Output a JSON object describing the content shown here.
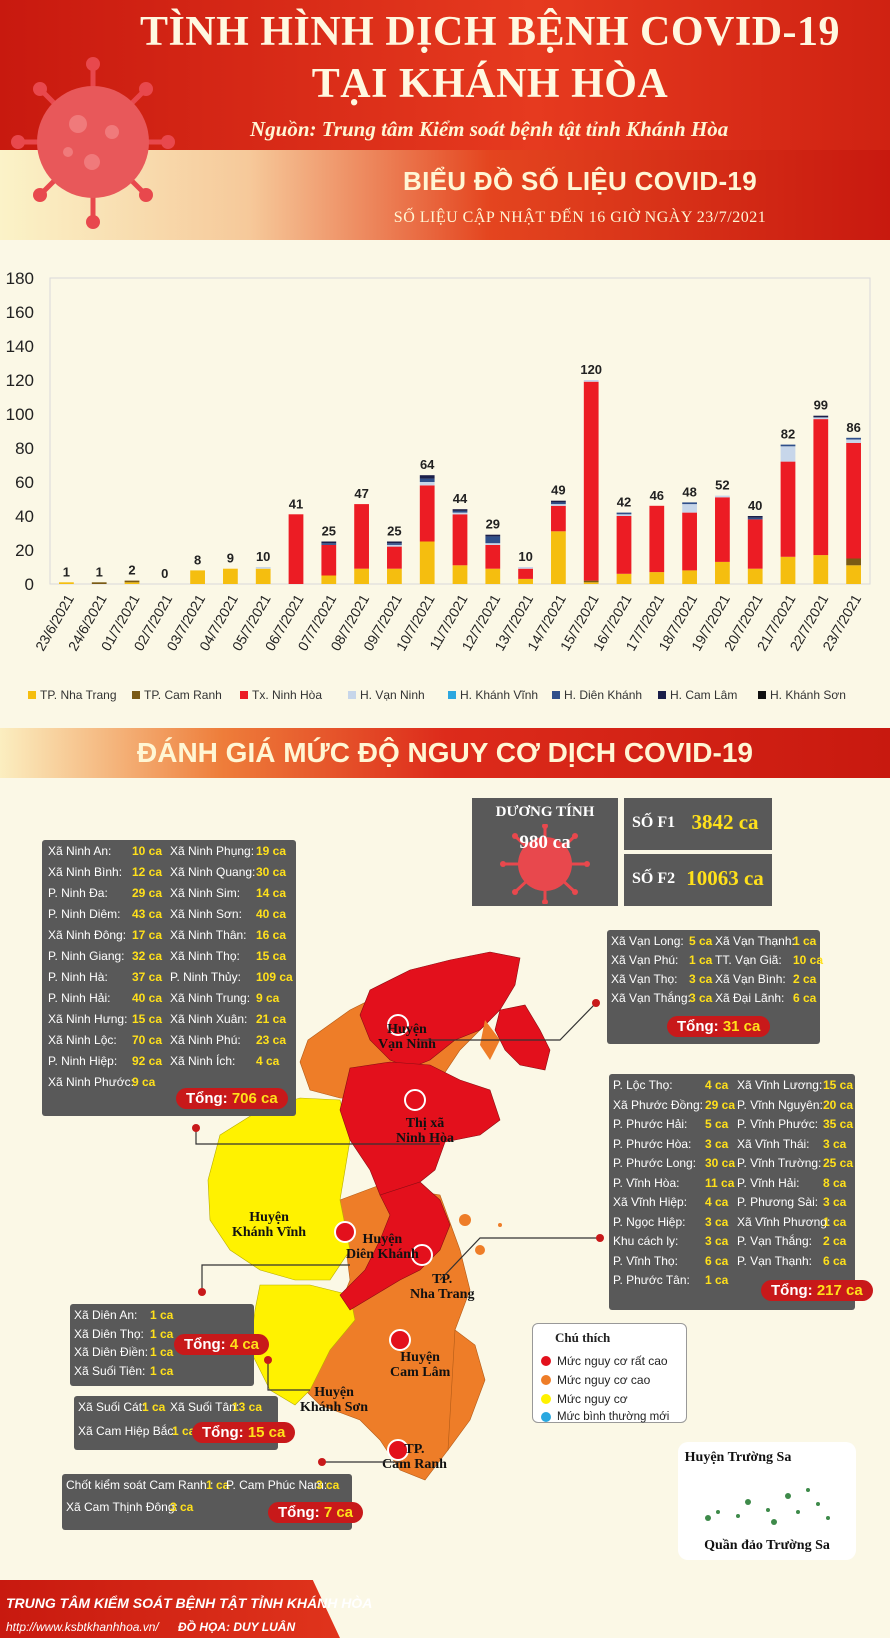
{
  "header": {
    "title_line1": "TÌNH HÌNH DỊCH BỆNH COVID-19",
    "title_line2": "TẠI KHÁNH HÒA",
    "source": "Nguồn: Trung tâm Kiểm soát bệnh tật tỉnh Khánh Hòa",
    "chart_title": "BIỂU ĐỒ SỐ LIỆU COVID-19",
    "chart_subtitle": "SỐ LIỆU CẬP NHẬT ĐẾN 16 GIỜ NGÀY 23/7/2021"
  },
  "colors": {
    "TP. Nha Trang": "#f5be0f",
    "TP. Cam Ranh": "#7a5a14",
    "Tx. Ninh Hòa": "#ec1c24",
    "H. Vạn Ninh": "#c7d6ea",
    "H. Khánh Vĩnh": "#2ca7df",
    "H. Diên Khánh": "#2f4f8a",
    "H. Cam Lâm": "#1b1f4a",
    "H. Khánh Sơn": "#111111"
  },
  "chart_data": {
    "type": "bar",
    "stacked": true,
    "title": "BIỂU ĐỒ SỐ LIỆU COVID-19",
    "ylim": [
      0,
      180
    ],
    "yticks": [
      0,
      20,
      40,
      60,
      80,
      100,
      120,
      140,
      160,
      180
    ],
    "grid": false,
    "legend_position": "bottom",
    "categories": [
      "23/6/2021",
      "24/6/2021",
      "01/7/2021",
      "02/7/2021",
      "03/7/2021",
      "04/7/2021",
      "05/7/2021",
      "06/7/2021",
      "07/7/2021",
      "08/7/2021",
      "09/7/2021",
      "10/7/2021",
      "11/7/2021",
      "12/7/2021",
      "13/7/2021",
      "14/7/2021",
      "15/7/2021",
      "16/7/2021",
      "17/7/2021",
      "18/7/2021",
      "19/7/2021",
      "20/7/2021",
      "21/7/2021",
      "22/7/2021",
      "23/7/2021"
    ],
    "totals": [
      1,
      1,
      2,
      0,
      8,
      9,
      10,
      41,
      25,
      47,
      25,
      64,
      44,
      29,
      10,
      49,
      120,
      42,
      46,
      48,
      52,
      40,
      82,
      99,
      86
    ],
    "series": [
      {
        "name": "TP. Nha Trang",
        "values": [
          1,
          0,
          1,
          0,
          8,
          9,
          9,
          0,
          5,
          9,
          9,
          25,
          11,
          9,
          3,
          31,
          1,
          6,
          7,
          8,
          13,
          9,
          16,
          17,
          11
        ]
      },
      {
        "name": "TP. Cam Ranh",
        "values": [
          0,
          1,
          1,
          0,
          0,
          0,
          0,
          0,
          0,
          0,
          0,
          0,
          0,
          0,
          0,
          0,
          1,
          0,
          0,
          0,
          0,
          0,
          0,
          0,
          4
        ]
      },
      {
        "name": "Tx. Ninh Hòa",
        "values": [
          0,
          0,
          0,
          0,
          0,
          0,
          0,
          41,
          18,
          38,
          13,
          33,
          30,
          14,
          6,
          15,
          117,
          34,
          39,
          34,
          38,
          29,
          56,
          80,
          68
        ]
      },
      {
        "name": "H. Vạn Ninh",
        "values": [
          0,
          0,
          0,
          0,
          0,
          0,
          1,
          0,
          0,
          0,
          1,
          2,
          1,
          1,
          1,
          1,
          1,
          1,
          0,
          5,
          1,
          0,
          9,
          1,
          2
        ]
      },
      {
        "name": "H. Khánh Vĩnh",
        "values": [
          0,
          0,
          0,
          0,
          0,
          0,
          0,
          0,
          0,
          0,
          0,
          0,
          0,
          0,
          0,
          0,
          0,
          0,
          0,
          0,
          0,
          0,
          0,
          0,
          0
        ]
      },
      {
        "name": "H. Diên Khánh",
        "values": [
          0,
          0,
          0,
          0,
          0,
          0,
          0,
          0,
          1,
          0,
          1,
          2,
          1,
          4,
          0,
          1,
          0,
          1,
          0,
          1,
          0,
          1,
          1,
          0,
          1
        ]
      },
      {
        "name": "H. Cam Lâm",
        "values": [
          0,
          0,
          0,
          0,
          0,
          0,
          0,
          0,
          1,
          0,
          1,
          2,
          1,
          1,
          0,
          1,
          0,
          0,
          0,
          0,
          0,
          1,
          0,
          1,
          0
        ]
      },
      {
        "name": "H. Khánh Sơn",
        "values": [
          0,
          0,
          0,
          0,
          0,
          0,
          0,
          0,
          0,
          0,
          0,
          0,
          0,
          0,
          0,
          0,
          0,
          0,
          0,
          0,
          0,
          0,
          0,
          0,
          0
        ]
      }
    ]
  },
  "risk_title": "ĐÁNH GIÁ MỨC ĐỘ NGUY CƠ DỊCH COVID-19",
  "stats": {
    "positive_label": "DƯƠNG TÍNH",
    "positive_value": "980 ca",
    "f1_label": "SỐ F1",
    "f1_value": "3842 ca",
    "f2_label": "SỐ F2",
    "f2_value": "10063 ca"
  },
  "ninh_hoa_box": {
    "col1": [
      {
        "name": "Xã Ninh An:",
        "value": "10 ca"
      },
      {
        "name": "Xã Ninh Bình:",
        "value": "12 ca"
      },
      {
        "name": "P. Ninh Đa:",
        "value": "29 ca"
      },
      {
        "name": "P. Ninh Diêm:",
        "value": "43 ca"
      },
      {
        "name": "Xã Ninh Đông:",
        "value": "17 ca"
      },
      {
        "name": "P. Ninh Giang:",
        "value": "32 ca"
      },
      {
        "name": "P. Ninh Hà:",
        "value": "37 ca"
      },
      {
        "name": "P. Ninh Hải:",
        "value": "40 ca"
      },
      {
        "name": "Xã Ninh Hưng:",
        "value": "15 ca"
      },
      {
        "name": "Xã Ninh Lộc:",
        "value": "70 ca"
      },
      {
        "name": "P. Ninh Hiệp:",
        "value": "92 ca"
      },
      {
        "name": "Xã Ninh Phước:",
        "value": "9 ca"
      }
    ],
    "col2": [
      {
        "name": "Xã Ninh Phụng:",
        "value": "19 ca"
      },
      {
        "name": "Xã Ninh Quang:",
        "value": "30 ca"
      },
      {
        "name": "Xã Ninh Sim:",
        "value": "14 ca"
      },
      {
        "name": "Xã Ninh Sơn:",
        "value": "40 ca"
      },
      {
        "name": "Xã Ninh Thân:",
        "value": "16 ca"
      },
      {
        "name": "Xã Ninh Thọ:",
        "value": "15 ca"
      },
      {
        "name": "P. Ninh Thủy:",
        "value": "109 ca"
      },
      {
        "name": "Xã Ninh Trung:",
        "value": "9 ca"
      },
      {
        "name": "Xã Ninh Xuân:",
        "value": "21 ca"
      },
      {
        "name": "Xã Ninh Phú:",
        "value": "23 ca"
      },
      {
        "name": "Xã Ninh Ích:",
        "value": "4 ca"
      }
    ],
    "total_label": "Tổng:",
    "total_value": "706 ca"
  },
  "van_ninh_box": {
    "col1": [
      {
        "name": "Xã Vạn Long:",
        "value": "5 ca"
      },
      {
        "name": "Xã Vạn Phú:",
        "value": "1 ca"
      },
      {
        "name": "Xã Vạn Thọ:",
        "value": "3 ca"
      },
      {
        "name": "Xã Vạn Thắng:",
        "value": "3 ca"
      }
    ],
    "col2": [
      {
        "name": "Xã Vạn Thạnh:",
        "value": "1 ca"
      },
      {
        "name": "TT. Vạn Giã:",
        "value": "10 ca"
      },
      {
        "name": "Xã Vạn Bình:",
        "value": "2 ca"
      },
      {
        "name": "Xã Đại Lãnh:",
        "value": "6 ca"
      }
    ],
    "total_label": "Tổng:",
    "total_value": "31 ca"
  },
  "nha_trang_box": {
    "col1": [
      {
        "name": "P. Lộc Thọ:",
        "value": "4 ca"
      },
      {
        "name": "Xã Phước Đồng:",
        "value": "29 ca"
      },
      {
        "name": "P. Phước Hải:",
        "value": "5 ca"
      },
      {
        "name": "P. Phước Hòa:",
        "value": "3 ca"
      },
      {
        "name": "P. Phước Long:",
        "value": "30 ca"
      },
      {
        "name": "P. Vĩnh Hòa:",
        "value": "11 ca"
      },
      {
        "name": "Xã Vĩnh Hiệp:",
        "value": "4 ca"
      },
      {
        "name": "P. Ngọc Hiệp:",
        "value": "3 ca"
      },
      {
        "name": "Khu cách ly:",
        "value": "3 ca"
      },
      {
        "name": "P. Vĩnh Thọ:",
        "value": "6 ca"
      },
      {
        "name": "P. Phước Tân:",
        "value": "1 ca"
      }
    ],
    "col2": [
      {
        "name": "Xã Vĩnh Lương:",
        "value": "15 ca"
      },
      {
        "name": "P. Vĩnh Nguyên:",
        "value": "20 ca"
      },
      {
        "name": "P. Vĩnh Phước:",
        "value": "35 ca"
      },
      {
        "name": "Xã Vĩnh Thái:",
        "value": "3 ca"
      },
      {
        "name": "P. Vĩnh Trường:",
        "value": "25 ca"
      },
      {
        "name": "P. Vĩnh Hải:",
        "value": "8 ca"
      },
      {
        "name": "P. Phương Sài:",
        "value": "3 ca"
      },
      {
        "name": "Xã Vĩnh Phương:",
        "value": "1 ca"
      },
      {
        "name": "P. Vạn Thắng:",
        "value": "2 ca"
      },
      {
        "name": "P. Vạn Thạnh:",
        "value": "6 ca"
      }
    ],
    "total_label": "Tổng:",
    "total_value": "217 ca"
  },
  "dien_khanh_box": {
    "rows": [
      {
        "name": "Xã Diên An:",
        "value": "1 ca"
      },
      {
        "name": "Xã Diên Thọ:",
        "value": "1 ca"
      },
      {
        "name": "Xã Diên Điền:",
        "value": "1 ca"
      },
      {
        "name": "Xã Suối Tiên:",
        "value": "1 ca"
      }
    ],
    "total_label": "Tổng:",
    "total_value": "4 ca"
  },
  "cam_lam_box": {
    "rows": [
      {
        "name": "Xã Suối Cát:",
        "value": "1 ca"
      },
      {
        "name": "Xã Suối Tân:",
        "value": "13 ca"
      },
      {
        "name": "Xã Cam Hiệp Bắc:",
        "value": "1 ca"
      }
    ],
    "total_label": "Tổng:",
    "total_value": "15 ca"
  },
  "cam_ranh_box": {
    "rows": [
      {
        "name": "Chốt kiểm soát Cam Ranh :",
        "value": "1 ca"
      },
      {
        "name": "P. Cam Phúc Nam:",
        "value": "3 ca"
      },
      {
        "name": "Xã Cam Thịnh Đông:",
        "value": "3 ca"
      }
    ],
    "total_label": "Tổng:",
    "total_value": "7 ca"
  },
  "map_labels": {
    "van_ninh": [
      "Huyện",
      "Vạn Ninh"
    ],
    "ninh_hoa": [
      "Thị xã",
      "Ninh Hòa"
    ],
    "khanh_vinh": [
      "Huyện",
      "Khánh Vĩnh"
    ],
    "dien_khanh": [
      "Huyện",
      "Diên Khánh"
    ],
    "nha_trang": [
      "TP.",
      "Nha Trang"
    ],
    "cam_lam": [
      "Huyện",
      "Cam Lâm"
    ],
    "khanh_son": [
      "Huyện",
      "Khánh Sơn"
    ],
    "cam_ranh": [
      "TP.",
      "Cam Ranh"
    ]
  },
  "map_legend": {
    "title": "Chú thích",
    "items": [
      {
        "label": "Mức nguy cơ rất cao",
        "color": "#e3101c"
      },
      {
        "label": "Mức nguy cơ cao",
        "color": "#ee7d28"
      },
      {
        "label": "Mức nguy cơ",
        "color": "#fff200"
      },
      {
        "label": "Mức bình thường mới",
        "color": "#29a8e0"
      }
    ]
  },
  "truong_sa": {
    "label_top": "Huyện Trường Sa",
    "label_bottom": "Quần đảo Trường Sa"
  },
  "footer": {
    "org": "TRUNG TÂM KIỂM SOÁT BỆNH TẬT TỈNH KHÁNH HÒA",
    "url": "http://www.ksbtkhanhhoa.vn/",
    "design": "ĐỒ HỌA: DUY LUÂN"
  }
}
